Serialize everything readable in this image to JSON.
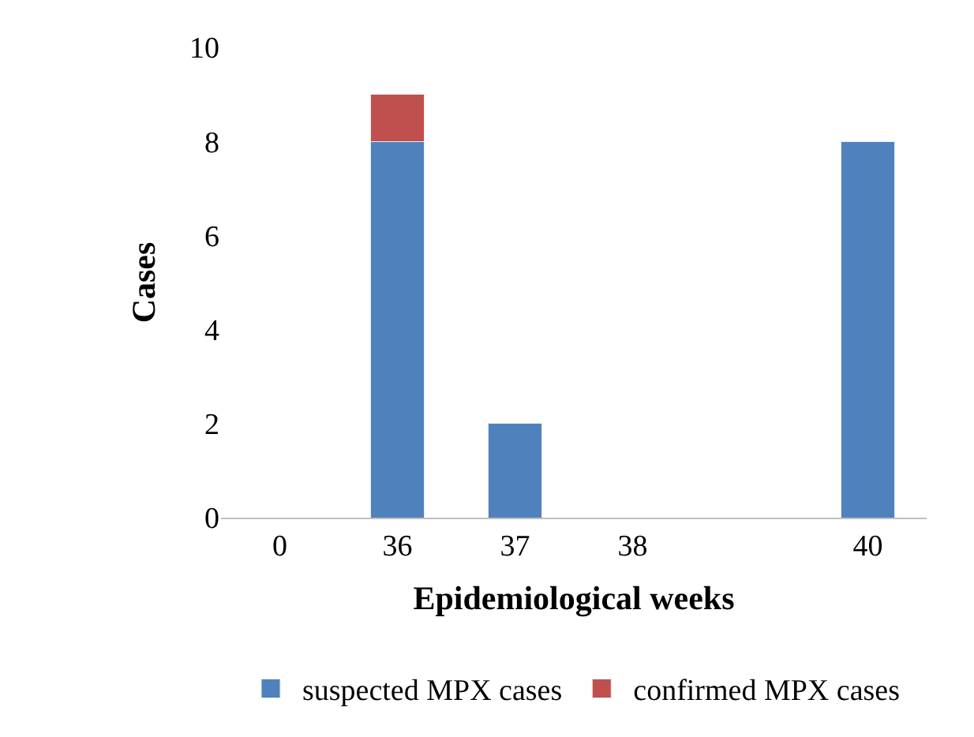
{
  "chart_data": {
    "type": "bar",
    "stacked": true,
    "xlabel": "Epidemiological weeks",
    "ylabel": "Cases",
    "categories": [
      "0",
      "36",
      "37",
      "38",
      null,
      "40"
    ],
    "series": [
      {
        "name": "suspected MPX cases",
        "color": "#4f81bd",
        "values": [
          0,
          8,
          2,
          0,
          null,
          8
        ]
      },
      {
        "name": "confirmed MPX cases",
        "color": "#c0504d",
        "values": [
          0,
          1,
          0,
          0,
          null,
          0
        ]
      }
    ],
    "ylim": [
      0,
      10
    ],
    "yticks": [
      0,
      2,
      4,
      6,
      8,
      10
    ],
    "legend": "bottom"
  }
}
